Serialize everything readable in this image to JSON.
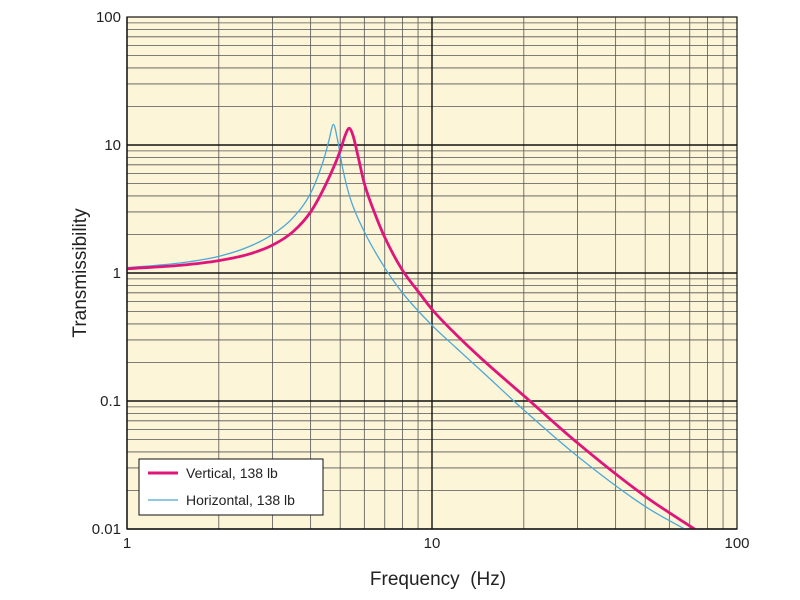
{
  "chart_data": {
    "type": "line",
    "xscale": "log",
    "yscale": "log",
    "xlabel": "Frequency  (Hz)",
    "ylabel": "Transmissibility",
    "xlim": [
      1,
      100
    ],
    "ylim": [
      0.01,
      100
    ],
    "x_ticks": [
      "1",
      "10",
      "100"
    ],
    "y_ticks": [
      "0.01",
      "0.1",
      "1",
      "10",
      "100"
    ],
    "grid": true,
    "legend_position": "bottom-left",
    "colors": {
      "plot_background": "#fdf5d8",
      "grid_minor": "#555555",
      "grid_major": "#111111"
    },
    "series": [
      {
        "name": "Vertical, 138 lb",
        "color": "#e0157a",
        "x": [
          1,
          1.5,
          2,
          2.5,
          3,
          3.5,
          4,
          4.5,
          5,
          5.2,
          5.35,
          5.5,
          5.7,
          6,
          6.5,
          7,
          8,
          9,
          10,
          12,
          15,
          20,
          30,
          50,
          75
        ],
        "y": [
          1.08,
          1.15,
          1.25,
          1.4,
          1.65,
          2.1,
          3.0,
          5.0,
          9.0,
          12.0,
          13.5,
          12.0,
          8.5,
          5.0,
          2.9,
          1.9,
          1.05,
          0.72,
          0.52,
          0.33,
          0.2,
          0.11,
          0.047,
          0.018,
          0.0095
        ]
      },
      {
        "name": "Horizontal, 138 lb",
        "color": "#4aa8d8",
        "x": [
          1,
          1.5,
          2,
          2.5,
          3,
          3.5,
          4,
          4.4,
          4.6,
          4.75,
          4.9,
          5.1,
          5.4,
          6,
          7,
          8,
          10,
          12,
          15,
          20,
          30,
          50,
          70
        ],
        "y": [
          1.1,
          1.2,
          1.35,
          1.6,
          2.0,
          2.7,
          4.2,
          7.5,
          11.0,
          14.5,
          11.0,
          6.5,
          3.8,
          2.1,
          1.1,
          0.7,
          0.39,
          0.26,
          0.16,
          0.085,
          0.037,
          0.015,
          0.0095
        ]
      }
    ]
  }
}
